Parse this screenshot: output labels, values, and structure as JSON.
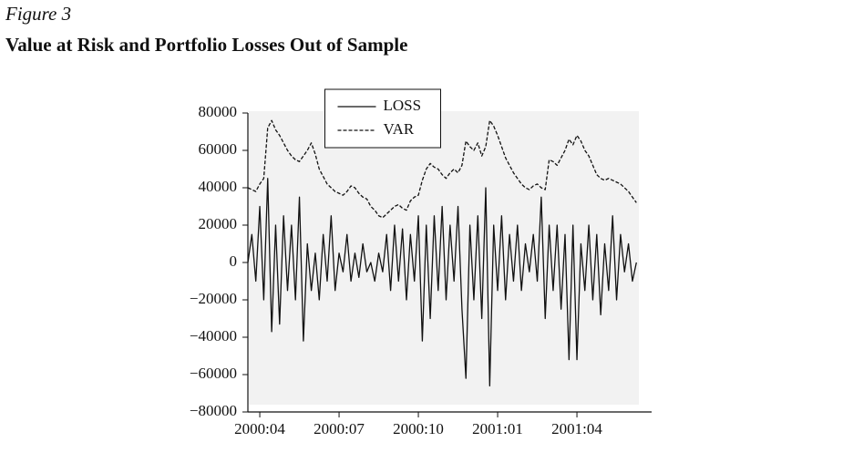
{
  "figure_label": "Figure 3",
  "chart_data": {
    "type": "line",
    "title": "Value at Risk and Portfolio Losses Out of Sample",
    "categories": [
      null,
      null,
      null,
      "2000:04",
      null,
      null,
      null,
      null,
      null,
      null,
      null,
      null,
      null,
      null,
      null,
      null,
      null,
      null,
      null,
      null,
      null,
      null,
      null,
      "2000:07",
      null,
      null,
      null,
      null,
      null,
      null,
      null,
      null,
      null,
      null,
      null,
      null,
      null,
      null,
      null,
      null,
      null,
      null,
      null,
      "2000:10",
      null,
      null,
      null,
      null,
      null,
      null,
      null,
      null,
      null,
      null,
      null,
      null,
      null,
      null,
      null,
      null,
      null,
      null,
      null,
      "2001:01",
      null,
      null,
      null,
      null,
      null,
      null,
      null,
      null,
      null,
      null,
      null,
      null,
      null,
      null,
      null,
      null,
      null,
      null,
      null,
      "2001:04",
      null,
      null,
      null,
      null,
      null,
      null,
      null,
      null,
      null,
      null,
      null,
      null,
      null,
      null,
      null
    ],
    "series": [
      {
        "name": "LOSS",
        "color": "#111111",
        "line_style": "solid",
        "values": [
          0,
          15000,
          -10000,
          30000,
          -20000,
          45000,
          -37000,
          20000,
          -33000,
          25000,
          -15000,
          20000,
          -20000,
          35000,
          -42000,
          10000,
          -15000,
          5000,
          -20000,
          15000,
          -10000,
          25000,
          -15000,
          5000,
          -5000,
          15000,
          -10000,
          5000,
          -8000,
          10000,
          -5000,
          0,
          -10000,
          5000,
          -5000,
          15000,
          -15000,
          20000,
          -10000,
          18000,
          -20000,
          15000,
          -10000,
          25000,
          -42000,
          20000,
          -30000,
          25000,
          -15000,
          30000,
          -20000,
          20000,
          -10000,
          30000,
          -25000,
          -62000,
          20000,
          -20000,
          25000,
          -30000,
          40000,
          -66000,
          20000,
          -15000,
          25000,
          -20000,
          15000,
          -10000,
          20000,
          -15000,
          10000,
          -5000,
          15000,
          -10000,
          35000,
          -30000,
          20000,
          -15000,
          20000,
          -25000,
          15000,
          -52000,
          20000,
          -52000,
          10000,
          -15000,
          20000,
          -20000,
          15000,
          -28000,
          10000,
          -15000,
          25000,
          -20000,
          15000,
          -5000,
          10000,
          -10000,
          0
        ]
      },
      {
        "name": "VAR",
        "color": "#111111",
        "line_style": "dashed",
        "values": [
          40000,
          39000,
          38000,
          42000,
          45000,
          72000,
          76000,
          71000,
          68000,
          64000,
          60000,
          57000,
          55000,
          54000,
          57000,
          60000,
          64000,
          58000,
          50000,
          46000,
          42000,
          40000,
          38000,
          37000,
          36000,
          38000,
          41000,
          40000,
          37000,
          35000,
          34000,
          30000,
          28000,
          25000,
          24000,
          26000,
          28000,
          30000,
          31000,
          29000,
          28000,
          33000,
          35000,
          36000,
          44000,
          50000,
          53000,
          51000,
          50000,
          47000,
          45000,
          48000,
          50000,
          48000,
          52000,
          65000,
          62000,
          60000,
          64000,
          57000,
          62000,
          76000,
          73000,
          68000,
          62000,
          56000,
          52000,
          48000,
          45000,
          42000,
          40000,
          39000,
          41000,
          42000,
          40000,
          39000,
          55000,
          54000,
          52000,
          56000,
          60000,
          66000,
          63000,
          68000,
          65000,
          60000,
          57000,
          52000,
          47000,
          45000,
          44000,
          45000,
          44000,
          43000,
          42000,
          40000,
          38000,
          35000,
          32000
        ]
      }
    ],
    "ylim": [
      -80000,
      80000
    ],
    "yticks": [
      {
        "value": -80000,
        "label": "−80000"
      },
      {
        "value": -60000,
        "label": "−60000"
      },
      {
        "value": -40000,
        "label": "−40000"
      },
      {
        "value": -20000,
        "label": "−20000"
      },
      0,
      20000,
      40000,
      60000,
      80000
    ],
    "legend": "upper center",
    "background": "#f2f2f2"
  }
}
